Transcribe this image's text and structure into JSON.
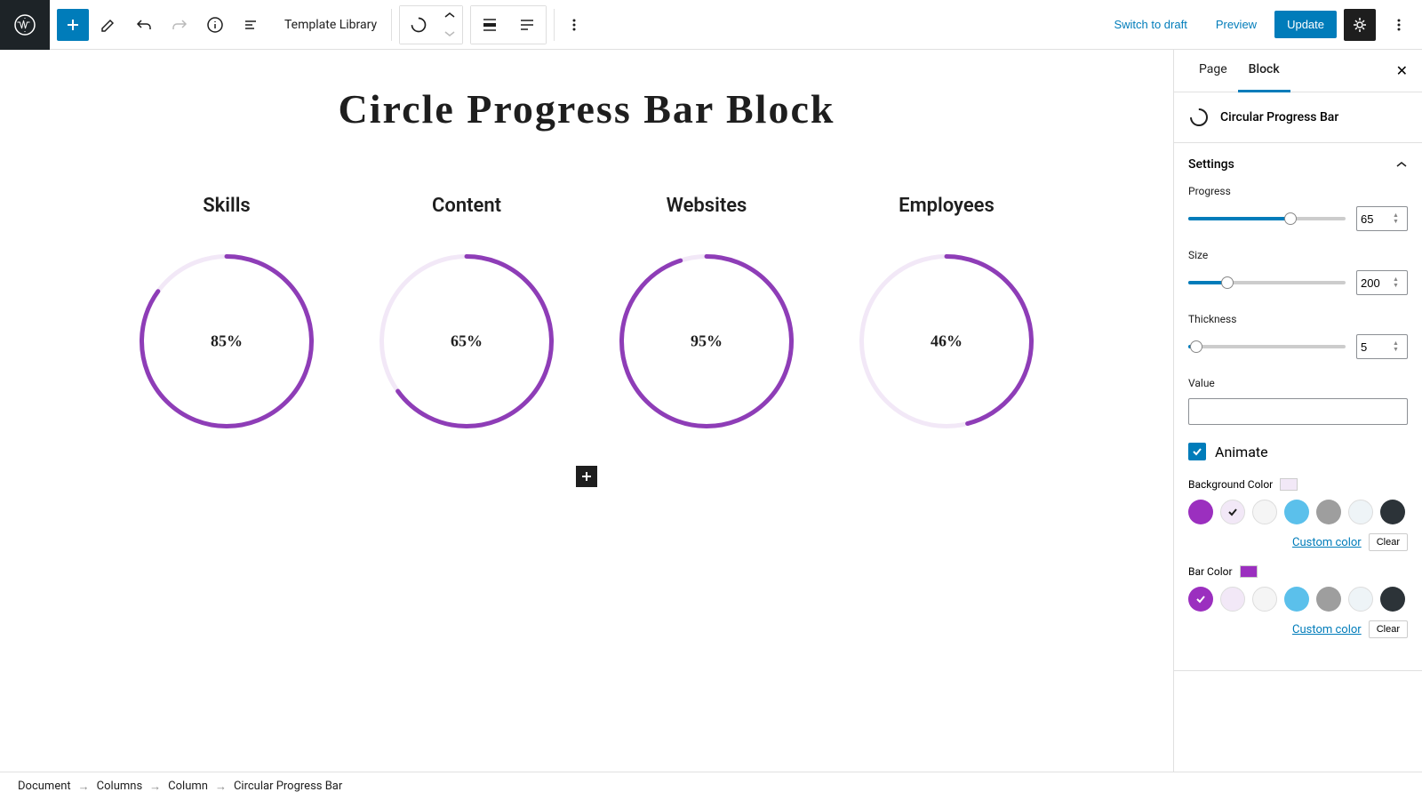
{
  "topbar": {
    "template_label": "Template Library",
    "switch_to_draft": "Switch to draft",
    "preview": "Preview",
    "update": "Update"
  },
  "canvas": {
    "title": "Circle Progress Bar Block",
    "circles": [
      {
        "label": "Skills",
        "percent": 85,
        "display": "85%"
      },
      {
        "label": "Content",
        "percent": 65,
        "display": "65%"
      },
      {
        "label": "Websites",
        "percent": 95,
        "display": "95%"
      },
      {
        "label": "Employees",
        "percent": 46,
        "display": "46%"
      }
    ],
    "circle_style": {
      "size": 200,
      "thickness": 5,
      "bg_color": "#f2e8f7",
      "bar_color": "#8e3db7",
      "stroke_linecap": "round"
    }
  },
  "sidebar": {
    "tabs": {
      "page": "Page",
      "block": "Block",
      "active": "block"
    },
    "block_name": "Circular Progress Bar",
    "settings_label": "Settings",
    "progress": {
      "label": "Progress",
      "value": 65,
      "min": 0,
      "max": 100
    },
    "size": {
      "label": "Size",
      "value": 200,
      "min": 0,
      "max": 800
    },
    "thickness": {
      "label": "Thickness",
      "value": 5,
      "min": 0,
      "max": 100
    },
    "value_field": {
      "label": "Value",
      "value": ""
    },
    "animate": {
      "label": "Animate",
      "checked": true
    },
    "bg_color": {
      "label": "Background Color",
      "preview": "#f2e8f7",
      "selected_index": 1,
      "swatches": [
        "#9b2fbf",
        "#f2e8f7",
        "#f5f5f5",
        "#5bc0eb",
        "#9e9e9e",
        "#eef4f7",
        "#2c3338"
      ],
      "custom_label": "Custom color",
      "clear_label": "Clear"
    },
    "bar_color": {
      "label": "Bar Color",
      "preview": "#9b2fbf",
      "selected_index": 0,
      "swatches": [
        "#9b2fbf",
        "#f2e8f7",
        "#f5f5f5",
        "#5bc0eb",
        "#9e9e9e",
        "#eef4f7",
        "#2c3338"
      ],
      "custom_label": "Custom color",
      "clear_label": "Clear"
    }
  },
  "breadcrumb": [
    "Document",
    "Columns",
    "Column",
    "Circular Progress Bar"
  ]
}
